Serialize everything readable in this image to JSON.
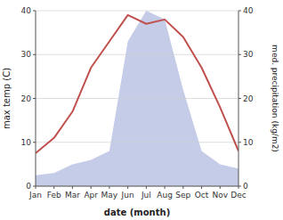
{
  "chart_data": {
    "type": "line",
    "categories": [
      "Jan",
      "Feb",
      "Mar",
      "Apr",
      "May",
      "Jun",
      "Jul",
      "Aug",
      "Sep",
      "Oct",
      "Nov",
      "Dec"
    ],
    "xlabel": "date (month)",
    "ylabel": "max temp (C)",
    "y2label": "med. precipitation (kg/m2)",
    "series": [
      {
        "type": "area",
        "axis": "y2",
        "color": "#c5cce8",
        "values": [
          2.5,
          3,
          5,
          6,
          8,
          33,
          40,
          38,
          22,
          8,
          5,
          4
        ]
      },
      {
        "type": "line",
        "color": "#c0504d",
        "values": [
          7.5,
          11,
          17,
          27,
          33,
          39,
          37,
          38,
          34,
          27,
          18,
          8
        ]
      }
    ],
    "ylim": [
      0,
      40
    ],
    "yticks": [
      0,
      10,
      20,
      30,
      40
    ],
    "y2lim": [
      0,
      40
    ],
    "y2ticks": [
      0,
      10,
      20,
      30,
      40
    ],
    "grid": true
  }
}
